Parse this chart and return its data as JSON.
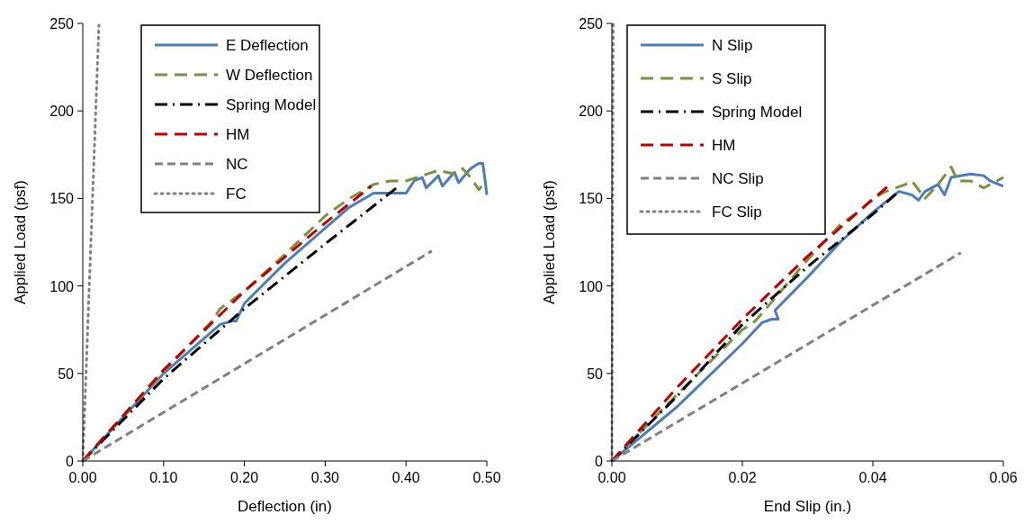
{
  "chart_data": [
    {
      "type": "line",
      "xlabel": "Deflection (in)",
      "ylabel": "Applied Load (psf)",
      "xlim": [
        0,
        0.5
      ],
      "ylim": [
        0,
        250
      ],
      "xticks": [
        {
          "value": 0,
          "label": "0.00"
        },
        {
          "value": 0.1,
          "label": "0.10"
        },
        {
          "value": 0.2,
          "label": "0.20"
        },
        {
          "value": 0.3,
          "label": "0.30"
        },
        {
          "value": 0.4,
          "label": "0.40"
        },
        {
          "value": 0.5,
          "label": "0.50"
        }
      ],
      "yticks": [
        0,
        50,
        100,
        150,
        200,
        250
      ],
      "grid": false,
      "legend": "top left",
      "marker": "none",
      "series": [
        {
          "name": "E Deflection",
          "color": "#4a7ebb",
          "line_style": "solid",
          "x": [
            0,
            0.1,
            0.17,
            0.185,
            0.19,
            0.2,
            0.25,
            0.3,
            0.33,
            0.36,
            0.4,
            0.41,
            0.42,
            0.425,
            0.44,
            0.445,
            0.46,
            0.465,
            0.48,
            0.49,
            0.495,
            0.498,
            0.5
          ],
          "values": [
            0,
            50,
            78,
            80,
            80,
            90,
            113,
            133,
            145,
            153,
            153,
            160,
            162,
            156,
            163,
            157,
            165,
            159,
            167,
            170,
            170,
            160,
            152
          ]
        },
        {
          "name": "W Deflection",
          "color": "#77933c",
          "line_style": "long_dash",
          "x": [
            0,
            0.1,
            0.16,
            0.17,
            0.2,
            0.25,
            0.3,
            0.33,
            0.36,
            0.38,
            0.4,
            0.42,
            0.44,
            0.46,
            0.47,
            0.48,
            0.49,
            0.5
          ],
          "values": [
            0,
            51,
            80,
            87,
            97,
            118,
            140,
            150,
            158,
            160,
            160,
            163,
            166,
            164,
            167,
            162,
            155,
            160
          ]
        },
        {
          "name": "Spring Model",
          "color": "#000000",
          "line_style": "dash_dot",
          "x": [
            0,
            0.1,
            0.2,
            0.3,
            0.391
          ],
          "values": [
            0,
            47,
            87,
            124,
            157
          ]
        },
        {
          "name": "HM",
          "color": "#c00000",
          "line_style": "long_dash",
          "x": [
            0,
            0.1,
            0.2,
            0.3,
            0.357
          ],
          "values": [
            0,
            52,
            97,
            136,
            157
          ]
        },
        {
          "name": "NC",
          "color": "#808080",
          "line_style": "dashed",
          "x": [
            0,
            0.432
          ],
          "values": [
            0,
            120
          ]
        },
        {
          "name": "FC",
          "color": "#808080",
          "line_style": "dotted",
          "x": [
            0,
            0.02
          ],
          "values": [
            0,
            249
          ]
        }
      ]
    },
    {
      "type": "line",
      "xlabel": "End Slip (in.)",
      "ylabel": "Applied Load (psf)",
      "xlim": [
        0,
        0.06
      ],
      "ylim": [
        0,
        250
      ],
      "xticks": [
        {
          "value": 0,
          "label": "0.00"
        },
        {
          "value": 0.02,
          "label": "0.02"
        },
        {
          "value": 0.04,
          "label": "0.04"
        },
        {
          "value": 0.06,
          "label": "0.06"
        }
      ],
      "yticks": [
        0,
        50,
        100,
        150,
        200,
        250
      ],
      "grid": false,
      "legend": "top left",
      "marker": "none",
      "series": [
        {
          "name": "N Slip",
          "color": "#4a7ebb",
          "line_style": "solid",
          "x": [
            0,
            0.01,
            0.02,
            0.023,
            0.0245,
            0.0255,
            0.025,
            0.03,
            0.035,
            0.04,
            0.044,
            0.046,
            0.047,
            0.048,
            0.05,
            0.051,
            0.052,
            0.055,
            0.057,
            0.058,
            0.06
          ],
          "values": [
            0,
            31,
            67,
            79,
            81,
            81,
            86,
            105,
            125,
            142,
            154,
            152,
            149,
            154,
            158,
            152,
            162,
            164,
            163,
            160,
            157
          ]
        },
        {
          "name": "S Slip",
          "color": "#77933c",
          "line_style": "long_dash",
          "x": [
            0,
            0.01,
            0.02,
            0.022,
            0.025,
            0.03,
            0.033,
            0.035,
            0.038,
            0.04,
            0.042,
            0.045,
            0.046,
            0.048,
            0.05,
            0.052,
            0.053,
            0.055,
            0.057,
            0.06
          ],
          "values": [
            0,
            38,
            75,
            80,
            93,
            115,
            127,
            135,
            143,
            150,
            154,
            158,
            160,
            150,
            158,
            168,
            160,
            160,
            156,
            162
          ]
        },
        {
          "name": "Spring Model",
          "color": "#000000",
          "line_style": "dash_dot",
          "x": [
            0,
            0.01,
            0.02,
            0.03,
            0.04,
            0.044
          ],
          "values": [
            0,
            37,
            78,
            111,
            141,
            154
          ]
        },
        {
          "name": "HM",
          "color": "#c00000",
          "line_style": "long_dash",
          "x": [
            0,
            0.01,
            0.02,
            0.03,
            0.0423
          ],
          "values": [
            0,
            42,
            81,
            117,
            157
          ]
        },
        {
          "name": "NC Slip",
          "color": "#808080",
          "line_style": "dashed",
          "x": [
            0,
            0.0535
          ],
          "values": [
            0,
            119
          ]
        },
        {
          "name": "FC Slip",
          "color": "#808080",
          "line_style": "dotted",
          "x": [
            0,
            0.0002
          ],
          "values": [
            0,
            250
          ]
        }
      ]
    }
  ]
}
